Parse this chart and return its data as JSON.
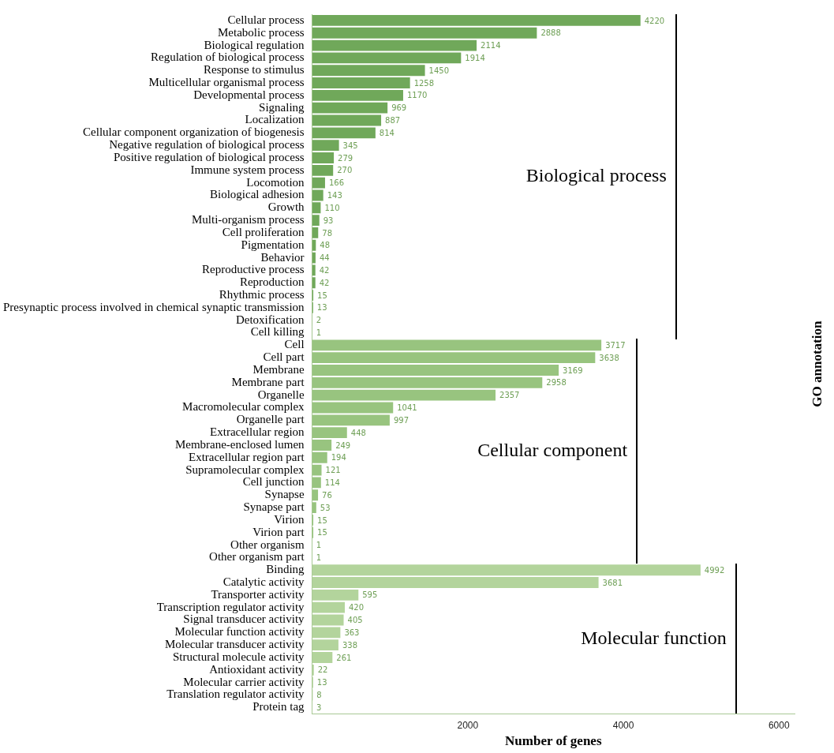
{
  "chart_data": {
    "type": "bar",
    "orientation": "horizontal",
    "xlabel": "Number of genes",
    "y2label": "GO annotation",
    "categories": [
      "Cellular process",
      "Metabolic process",
      "Biological regulation",
      "Regulation of biological process",
      "Response to stimulus",
      "Multicellular organismal process",
      "Developmental process",
      "Signaling",
      "Localization",
      "Cellular component organization of biogenesis",
      "Negative regulation of biological process",
      "Positive regulation of biological process",
      "Immune system process",
      "Locomotion",
      "Biological adhesion",
      "Growth",
      "Multi-organism process",
      "Cell proliferation",
      "Pigmentation",
      "Behavior",
      "Reproductive process",
      "Reproduction",
      "Rhythmic process",
      "Presynaptic process involved in chemical synaptic transmission",
      "Detoxification",
      "Cell killing",
      "Cell",
      "Cell part",
      "Membrane",
      "Membrane part",
      "Organelle",
      "Macromolecular complex",
      "Organelle part",
      "Extracellular region",
      "Membrane-enclosed lumen",
      "Extracellular region part",
      "Supramolecular complex",
      "Cell junction",
      "Synapse",
      "Synapse part",
      "Virion",
      "Virion part",
      "Other organism",
      "Other organism part",
      "Binding",
      "Catalytic activity",
      "Transporter activity",
      "Transcription regulator activity",
      "Signal transducer activity",
      "Molecular function activity",
      "Molecular transducer activity",
      "Structural molecule activity",
      "Antioxidant activity",
      "Molecular carrier activity",
      "Translation regulator activity",
      "Protein tag"
    ],
    "values": [
      4220,
      2888,
      2114,
      1914,
      1450,
      1258,
      1170,
      969,
      887,
      814,
      345,
      279,
      270,
      166,
      143,
      110,
      93,
      78,
      48,
      44,
      42,
      42,
      15,
      13,
      2,
      1,
      3717,
      3638,
      3169,
      2958,
      2357,
      1041,
      997,
      448,
      249,
      194,
      121,
      114,
      76,
      53,
      15,
      15,
      1,
      1,
      4992,
      3681,
      595,
      420,
      405,
      363,
      338,
      261,
      22,
      13,
      8,
      3
    ],
    "colors": [
      "#70a85a",
      "#70a85a",
      "#70a85a",
      "#70a85a",
      "#70a85a",
      "#70a85a",
      "#70a85a",
      "#70a85a",
      "#70a85a",
      "#70a85a",
      "#70a85a",
      "#70a85a",
      "#70a85a",
      "#70a85a",
      "#70a85a",
      "#70a85a",
      "#70a85a",
      "#70a85a",
      "#70a85a",
      "#70a85a",
      "#70a85a",
      "#70a85a",
      "#70a85a",
      "#70a85a",
      "#70a85a",
      "#70a85a",
      "#98c47f",
      "#98c47f",
      "#98c47f",
      "#98c47f",
      "#98c47f",
      "#98c47f",
      "#98c47f",
      "#98c47f",
      "#98c47f",
      "#98c47f",
      "#98c47f",
      "#98c47f",
      "#98c47f",
      "#98c47f",
      "#98c47f",
      "#98c47f",
      "#98c47f",
      "#98c47f",
      "#b3d49c",
      "#b3d49c",
      "#b3d49c",
      "#b3d49c",
      "#b3d49c",
      "#b3d49c",
      "#b3d49c",
      "#b3d49c",
      "#b3d49c",
      "#b3d49c",
      "#b3d49c",
      "#b3d49c"
    ],
    "xlim": [
      0,
      6200
    ],
    "xticks": [
      2000,
      4000,
      6000
    ],
    "annotations": [
      "Biological process",
      "Cellular component",
      "Molecular function"
    ],
    "data_labels": true,
    "grid": false,
    "legend": false
  }
}
